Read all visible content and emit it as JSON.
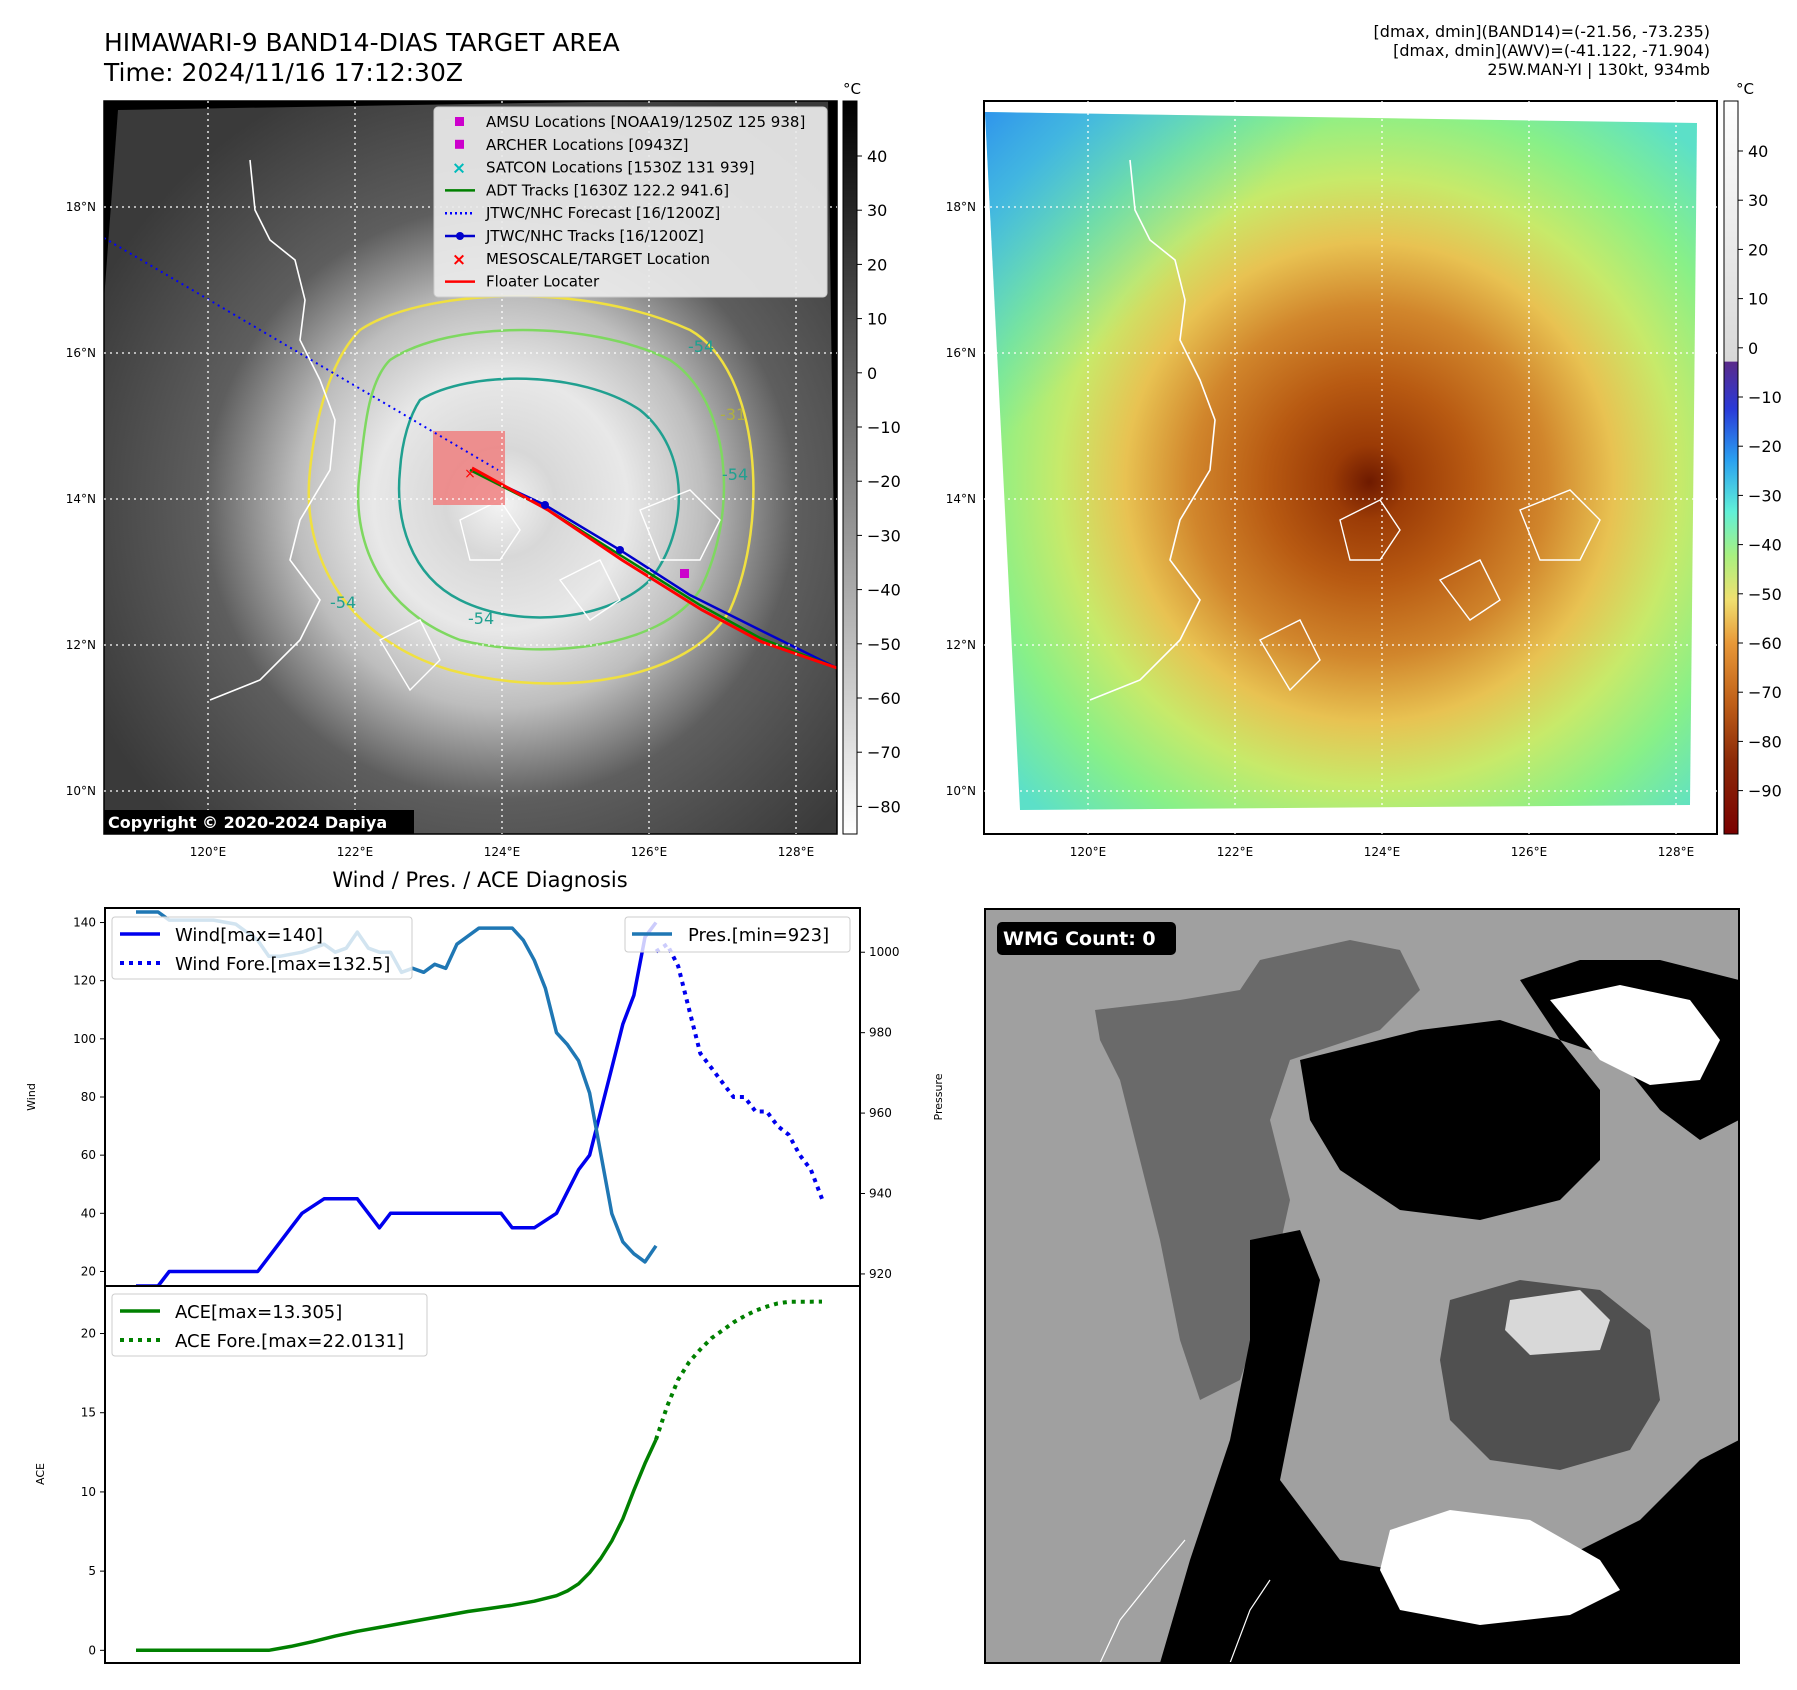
{
  "header": {
    "title_line1": "HIMAWARI-9 BAND14-DIAS TARGET AREA",
    "title_line2": "Time: 2024/11/16 17:12:30Z",
    "info_line1": "[dmax, dmin](BAND14)=(-21.56, -73.235)",
    "info_line2": "[dmax, dmin](AWV)=(-41.122, -71.904)",
    "info_line3": "25W.MAN-YI | 130kt, 934mb"
  },
  "map": {
    "lat_labels": [
      "18°N",
      "16°N",
      "14°N",
      "12°N",
      "10°N"
    ],
    "lon_labels": [
      "120°E",
      "122°E",
      "124°E",
      "126°E",
      "128°E"
    ],
    "copyright": "Copyright © 2020-2024 Dapiya",
    "contour_labels": [
      "-54",
      "-31",
      "-54",
      "-54",
      "-54"
    ],
    "legend": [
      {
        "label": "AMSU Locations [NOAA19/1250Z 125 938]",
        "color": "#cc00cc",
        "kind": "square"
      },
      {
        "label": "ARCHER Locations [0943Z]",
        "color": "#cc00cc",
        "kind": "square"
      },
      {
        "label": "SATCON Locations [1530Z 131 939]",
        "color": "#00bbbb",
        "kind": "x"
      },
      {
        "label": "ADT Tracks [1630Z 122.2 941.6]",
        "color": "#008000",
        "kind": "line"
      },
      {
        "label": "JTWC/NHC Forecast [16/1200Z]",
        "color": "#0000ff",
        "kind": "dotted"
      },
      {
        "label": "JTWC/NHC Tracks [16/1200Z]",
        "color": "#0000cc",
        "kind": "linedot"
      },
      {
        "label": "MESOSCALE/TARGET Location",
        "color": "#ff0000",
        "kind": "x"
      },
      {
        "label": "Floater Locater",
        "color": "#ff0000",
        "kind": "line"
      }
    ]
  },
  "colorbar_left": {
    "unit": "°C",
    "ticks": [
      "40",
      "30",
      "20",
      "10",
      "0",
      "−10",
      "−20",
      "−30",
      "−40",
      "−50",
      "−60",
      "−70",
      "−80"
    ]
  },
  "colorbar_right": {
    "unit": "°C",
    "ticks": [
      "40",
      "30",
      "20",
      "10",
      "0",
      "−10",
      "−20",
      "−30",
      "−40",
      "−50",
      "−60",
      "−70",
      "−80",
      "−90"
    ]
  },
  "wmg": {
    "label": "WMG Count: 0"
  },
  "chart_data": [
    {
      "type": "line",
      "title": "Wind / Pres. / ACE Diagnosis",
      "ylabel": "Wind",
      "y2label": "Pressure",
      "ylim": [
        15,
        145
      ],
      "y2lim": [
        917,
        1011
      ],
      "yticks": [
        20,
        40,
        60,
        80,
        100,
        120,
        140
      ],
      "y2ticks": [
        920,
        940,
        960,
        980,
        1000
      ],
      "x_index_range": [
        0,
        62
      ],
      "series": [
        {
          "name": "Wind[max=140]",
          "axis": "left",
          "style": "solid",
          "color": "#0000ee",
          "x": [
            0,
            2,
            3,
            5,
            6,
            8,
            9,
            11,
            12,
            14,
            15,
            17,
            18,
            20,
            21,
            22,
            23,
            24,
            25,
            26,
            28,
            29,
            33,
            34,
            36,
            38,
            40,
            41,
            42,
            43,
            44,
            45,
            46,
            47
          ],
          "values": [
            15,
            15,
            20,
            20,
            20,
            20,
            20,
            20,
            25,
            35,
            40,
            45,
            45,
            45,
            40,
            35,
            40,
            40,
            40,
            40,
            40,
            40,
            40,
            35,
            35,
            40,
            55,
            60,
            75,
            90,
            105,
            115,
            135,
            140
          ]
        },
        {
          "name": "Wind Fore.[max=132.5]",
          "axis": "left",
          "style": "dotted",
          "color": "#0000ee",
          "x": [
            47,
            48,
            49,
            50,
            51,
            52,
            53,
            54,
            55,
            56,
            57,
            58,
            59,
            60,
            61,
            62
          ],
          "values": [
            130,
            132.5,
            125,
            110,
            95,
            90,
            85,
            80,
            80,
            75,
            75,
            70,
            67,
            60,
            55,
            45
          ]
        },
        {
          "name": "Pres.[min=923]",
          "axis": "right",
          "style": "solid",
          "color": "#1f77b4",
          "x": [
            0,
            2,
            3,
            5,
            7,
            9,
            11,
            12,
            13,
            15,
            17,
            18,
            19,
            20,
            21,
            22,
            23,
            24,
            25,
            26,
            27,
            28,
            29,
            30,
            31,
            33,
            34,
            35,
            36,
            37,
            38,
            39,
            40,
            41,
            42,
            43,
            44,
            45,
            46,
            47
          ],
          "values": [
            1010,
            1010,
            1008,
            1008,
            1008,
            1007,
            1003,
            999,
            999,
            1000,
            1002,
            1000,
            1001,
            1005,
            1001,
            1000,
            1000,
            995,
            996,
            995,
            997,
            996,
            1002,
            1004,
            1006,
            1006,
            1006,
            1003,
            998,
            991,
            980,
            977,
            973,
            965,
            950,
            935,
            928,
            925,
            923,
            927
          ]
        }
      ]
    },
    {
      "type": "line",
      "ylabel": "ACE",
      "ylim": [
        -0.8,
        23
      ],
      "yticks": [
        0,
        5,
        10,
        15,
        20
      ],
      "x_index_range": [
        0,
        62
      ],
      "series": [
        {
          "name": "ACE[max=13.305]",
          "style": "solid",
          "color": "#008000",
          "x": [
            0,
            2,
            4,
            6,
            8,
            10,
            12,
            14,
            16,
            18,
            20,
            22,
            24,
            26,
            28,
            30,
            32,
            34,
            36,
            38,
            39,
            40,
            41,
            42,
            43,
            44,
            45,
            46,
            47
          ],
          "values": [
            0,
            0,
            0,
            0,
            0,
            0,
            0,
            0.25,
            0.55,
            0.9,
            1.2,
            1.45,
            1.7,
            1.95,
            2.2,
            2.45,
            2.65,
            2.85,
            3.1,
            3.45,
            3.75,
            4.2,
            4.9,
            5.8,
            6.9,
            8.3,
            10.1,
            11.8,
            13.305
          ]
        },
        {
          "name": "ACE Fore.[max=22.0131]",
          "style": "dotted",
          "color": "#008000",
          "x": [
            47,
            48,
            49,
            50,
            51,
            52,
            53,
            54,
            55,
            56,
            57,
            58,
            59,
            60,
            61,
            62
          ],
          "values": [
            13.305,
            15.4,
            17.1,
            18.2,
            19.0,
            19.7,
            20.2,
            20.7,
            21.1,
            21.45,
            21.7,
            21.9,
            22.0,
            22.01,
            22.01,
            22.0131
          ]
        }
      ]
    }
  ]
}
